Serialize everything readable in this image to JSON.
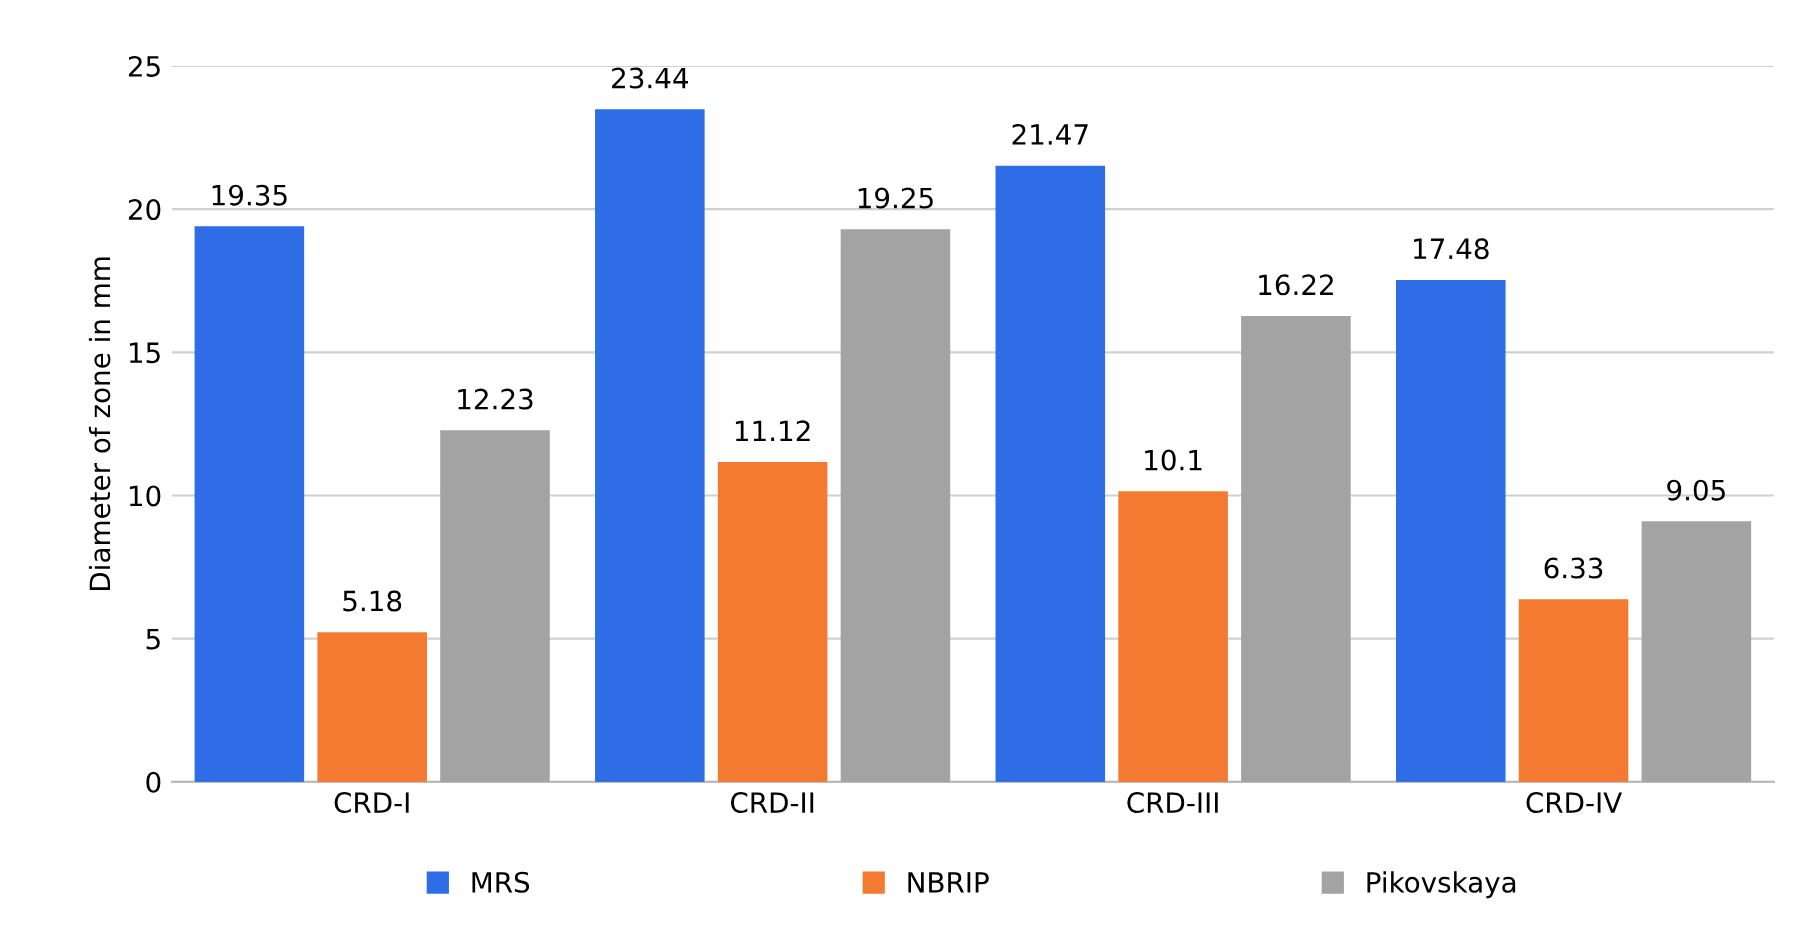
{
  "chart_data": {
    "type": "bar",
    "ylabel": "Diameter of zone in mm",
    "categories": [
      "CRD-I",
      "CRD-II",
      "CRD-III",
      "CRD-IV"
    ],
    "series": [
      {
        "name": "MRS",
        "color": "#2f6de6",
        "values": [
          19.35,
          23.44,
          21.47,
          17.48
        ]
      },
      {
        "name": "NBRIP",
        "color": "#f47a32",
        "values": [
          5.18,
          11.12,
          10.1,
          6.33
        ]
      },
      {
        "name": "Pikovskaya",
        "color": "#a3a3a3",
        "values": [
          12.23,
          19.25,
          16.22,
          9.05
        ]
      }
    ],
    "ylim": [
      0,
      25
    ],
    "yticks": [
      0,
      5,
      10,
      15,
      20,
      25
    ],
    "grid": "y",
    "legend": "bottom",
    "data_labels": true
  }
}
